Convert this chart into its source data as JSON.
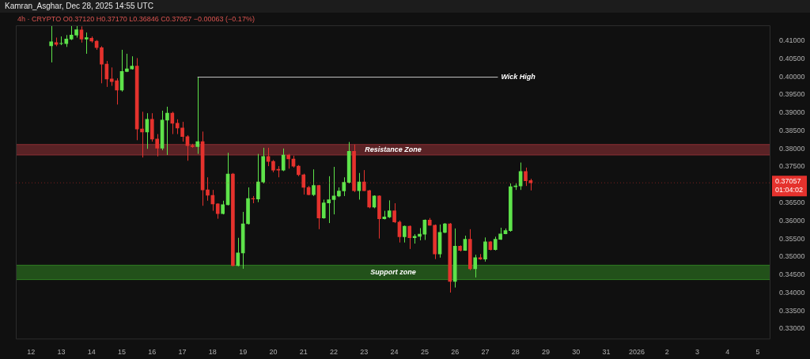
{
  "chart_data": {
    "type": "candlestick",
    "title": "4h · CRYPTO  O0.37120 H0.37170 L0.36846 C0.37057 −0.00063 (−0.17%)",
    "annotations": [
      "Kamran_Asghar, Dec 28, 2025 14:55 UTC",
      {
        "text": "Wick High",
        "x": "2025-12-27T10:00",
        "y": 0.3999
      }
    ],
    "x": [
      "2025-12-12T16:00",
      "2025-12-12T20:00",
      "2025-12-13T00:00",
      "2025-12-13T04:00",
      "2025-12-13T08:00",
      "2025-12-13T12:00",
      "2025-12-13T16:00",
      "2025-12-13T20:00",
      "2025-12-14T00:00",
      "2025-12-14T04:00",
      "2025-12-14T08:00",
      "2025-12-14T12:00",
      "2025-12-14T16:00",
      "2025-12-14T20:00",
      "2025-12-15T00:00",
      "2025-12-15T04:00",
      "2025-12-15T08:00",
      "2025-12-15T12:00",
      "2025-12-15T16:00",
      "2025-12-15T20:00",
      "2025-12-16T00:00",
      "2025-12-16T04:00",
      "2025-12-16T08:00",
      "2025-12-16T12:00",
      "2025-12-16T16:00",
      "2025-12-16T20:00",
      "2025-12-17T00:00",
      "2025-12-17T04:00",
      "2025-12-17T08:00",
      "2025-12-17T12:00",
      "2025-12-17T16:00",
      "2025-12-17T20:00",
      "2025-12-18T00:00",
      "2025-12-18T04:00",
      "2025-12-18T08:00",
      "2025-12-18T12:00",
      "2025-12-18T16:00",
      "2025-12-18T20:00",
      "2025-12-19T00:00",
      "2025-12-19T04:00",
      "2025-12-19T08:00",
      "2025-12-19T12:00",
      "2025-12-19T16:00",
      "2025-12-19T20:00",
      "2025-12-20T00:00",
      "2025-12-20T04:00",
      "2025-12-20T08:00",
      "2025-12-20T12:00",
      "2025-12-20T16:00",
      "2025-12-20T20:00",
      "2025-12-21T00:00",
      "2025-12-21T04:00",
      "2025-12-21T08:00",
      "2025-12-21T12:00",
      "2025-12-21T16:00",
      "2025-12-21T20:00",
      "2025-12-22T00:00",
      "2025-12-22T04:00",
      "2025-12-22T08:00",
      "2025-12-22T12:00",
      "2025-12-22T16:00",
      "2025-12-22T20:00",
      "2025-12-23T00:00",
      "2025-12-23T04:00",
      "2025-12-23T08:00",
      "2025-12-23T12:00",
      "2025-12-23T16:00",
      "2025-12-23T20:00",
      "2025-12-24T00:00",
      "2025-12-24T04:00",
      "2025-12-24T08:00",
      "2025-12-24T12:00",
      "2025-12-24T16:00",
      "2025-12-24T20:00",
      "2025-12-25T00:00",
      "2025-12-25T04:00",
      "2025-12-25T08:00",
      "2025-12-25T12:00",
      "2025-12-25T16:00",
      "2025-12-25T20:00",
      "2025-12-26T00:00",
      "2025-12-26T04:00",
      "2025-12-26T08:00",
      "2025-12-26T12:00",
      "2025-12-26T16:00",
      "2025-12-26T20:00",
      "2025-12-27T00:00",
      "2025-12-27T04:00",
      "2025-12-27T08:00",
      "2025-12-27T12:00",
      "2025-12-27T16:00",
      "2025-12-27T20:00",
      "2025-12-28T00:00",
      "2025-12-28T04:00",
      "2025-12-28T08:00",
      "2025-12-28T12:00"
    ],
    "ohlc": [
      [
        0.4086,
        0.4142,
        0.404,
        0.4097
      ],
      [
        0.4095,
        0.4109,
        0.4085,
        0.409
      ],
      [
        0.4092,
        0.4112,
        0.4088,
        0.4093
      ],
      [
        0.4092,
        0.4116,
        0.4083,
        0.4105
      ],
      [
        0.4105,
        0.4142,
        0.4102,
        0.4116
      ],
      [
        0.4116,
        0.4142,
        0.4109,
        0.4131
      ],
      [
        0.413,
        0.414,
        0.4095,
        0.4105
      ],
      [
        0.4105,
        0.4123,
        0.4064,
        0.4109
      ],
      [
        0.4107,
        0.4112,
        0.4095,
        0.4099
      ],
      [
        0.4099,
        0.4102,
        0.4075,
        0.4081
      ],
      [
        0.4081,
        0.4085,
        0.3982,
        0.4035
      ],
      [
        0.4035,
        0.4044,
        0.3972,
        0.3994
      ],
      [
        0.3994,
        0.4026,
        0.3975,
        0.3987
      ],
      [
        0.3989,
        0.3996,
        0.3923,
        0.3963
      ],
      [
        0.3963,
        0.4075,
        0.3959,
        0.4015
      ],
      [
        0.4015,
        0.4064,
        0.4013,
        0.4022
      ],
      [
        0.4022,
        0.4057,
        0.402,
        0.403
      ],
      [
        0.403,
        0.4052,
        0.3824,
        0.3855
      ],
      [
        0.3855,
        0.3903,
        0.3776,
        0.3847
      ],
      [
        0.3847,
        0.3899,
        0.38,
        0.3882
      ],
      [
        0.3882,
        0.3899,
        0.382,
        0.3827
      ],
      [
        0.3827,
        0.3841,
        0.3779,
        0.3802
      ],
      [
        0.3802,
        0.3906,
        0.3796,
        0.388
      ],
      [
        0.388,
        0.3917,
        0.3783,
        0.3899
      ],
      [
        0.3899,
        0.3903,
        0.3841,
        0.3871
      ],
      [
        0.3871,
        0.3882,
        0.3841,
        0.3858
      ],
      [
        0.3858,
        0.3875,
        0.382,
        0.3834
      ],
      [
        0.3834,
        0.3838,
        0.3767,
        0.3809
      ],
      [
        0.3809,
        0.3814,
        0.3803,
        0.3806
      ],
      [
        0.3806,
        0.3999,
        0.3786,
        0.382
      ],
      [
        0.382,
        0.3848,
        0.3642,
        0.3686
      ],
      [
        0.3686,
        0.3721,
        0.3656,
        0.3671
      ],
      [
        0.3671,
        0.3686,
        0.3628,
        0.3647
      ],
      [
        0.3647,
        0.3649,
        0.3606,
        0.362
      ],
      [
        0.362,
        0.3656,
        0.3618,
        0.3645
      ],
      [
        0.3645,
        0.3789,
        0.3643,
        0.373
      ],
      [
        0.373,
        0.3733,
        0.3474,
        0.3476
      ],
      [
        0.3476,
        0.3553,
        0.3474,
        0.3511
      ],
      [
        0.3511,
        0.3625,
        0.3467,
        0.3592
      ],
      [
        0.3592,
        0.3693,
        0.359,
        0.3662
      ],
      [
        0.3662,
        0.3669,
        0.3649,
        0.3661
      ],
      [
        0.3661,
        0.3786,
        0.3652,
        0.3708
      ],
      [
        0.3708,
        0.3803,
        0.3704,
        0.3779
      ],
      [
        0.3779,
        0.3803,
        0.3752,
        0.3765
      ],
      [
        0.3765,
        0.3769,
        0.3735,
        0.3741
      ],
      [
        0.3743,
        0.3752,
        0.3721,
        0.3741
      ],
      [
        0.3741,
        0.3801,
        0.3738,
        0.3783
      ],
      [
        0.3783,
        0.3786,
        0.3745,
        0.3772
      ],
      [
        0.3772,
        0.3781,
        0.3748,
        0.3752
      ],
      [
        0.3752,
        0.3755,
        0.3724,
        0.3728
      ],
      [
        0.3728,
        0.3731,
        0.3673,
        0.3693
      ],
      [
        0.3693,
        0.3697,
        0.3671,
        0.3673
      ],
      [
        0.3673,
        0.3743,
        0.3669,
        0.3698
      ],
      [
        0.3698,
        0.37,
        0.3577,
        0.3608
      ],
      [
        0.3608,
        0.3659,
        0.3606,
        0.365
      ],
      [
        0.365,
        0.3724,
        0.3594,
        0.3659
      ],
      [
        0.3659,
        0.375,
        0.3618,
        0.3669
      ],
      [
        0.3669,
        0.3693,
        0.3666,
        0.3683
      ],
      [
        0.3683,
        0.3721,
        0.3669,
        0.3707
      ],
      [
        0.3707,
        0.3819,
        0.3704,
        0.3793
      ],
      [
        0.3793,
        0.3812,
        0.368,
        0.3684
      ],
      [
        0.3684,
        0.3733,
        0.3659,
        0.3708
      ],
      [
        0.3708,
        0.3741,
        0.3683,
        0.3684
      ],
      [
        0.3684,
        0.3686,
        0.3635,
        0.3638
      ],
      [
        0.3638,
        0.3671,
        0.3635,
        0.3669
      ],
      [
        0.3669,
        0.3671,
        0.3551,
        0.3606
      ],
      [
        0.3606,
        0.3628,
        0.3604,
        0.3611
      ],
      [
        0.3611,
        0.3657,
        0.3608,
        0.3628
      ],
      [
        0.3628,
        0.3649,
        0.3594,
        0.3597
      ],
      [
        0.3597,
        0.3601,
        0.354,
        0.3556
      ],
      [
        0.3556,
        0.3587,
        0.354,
        0.3585
      ],
      [
        0.3585,
        0.3587,
        0.3522,
        0.3553
      ],
      [
        0.3553,
        0.3563,
        0.3537,
        0.3557
      ],
      [
        0.3557,
        0.358,
        0.3546,
        0.3563
      ],
      [
        0.3563,
        0.3604,
        0.3547,
        0.3602
      ],
      [
        0.3602,
        0.3608,
        0.3587,
        0.3588
      ],
      [
        0.3588,
        0.359,
        0.3494,
        0.3508
      ],
      [
        0.3508,
        0.359,
        0.3498,
        0.3568
      ],
      [
        0.3568,
        0.3594,
        0.3566,
        0.3592
      ],
      [
        0.3592,
        0.3594,
        0.3401,
        0.3432
      ],
      [
        0.3432,
        0.3579,
        0.3415,
        0.353
      ],
      [
        0.353,
        0.3532,
        0.3515,
        0.3518
      ],
      [
        0.3518,
        0.3559,
        0.3517,
        0.3549
      ],
      [
        0.3549,
        0.3577,
        0.3463,
        0.3467
      ],
      [
        0.3467,
        0.3506,
        0.3443,
        0.3498
      ],
      [
        0.3498,
        0.3508,
        0.3492,
        0.3494
      ],
      [
        0.3494,
        0.3554,
        0.3487,
        0.3542
      ],
      [
        0.3542,
        0.3544,
        0.3518,
        0.352
      ],
      [
        0.352,
        0.3556,
        0.3518,
        0.3549
      ],
      [
        0.3549,
        0.3581,
        0.3547,
        0.3564
      ],
      [
        0.3564,
        0.3579,
        0.3563,
        0.3573
      ],
      [
        0.3573,
        0.3704,
        0.357,
        0.3695
      ],
      [
        0.3695,
        0.3704,
        0.3686,
        0.3697
      ],
      [
        0.3697,
        0.3762,
        0.3686,
        0.3737
      ],
      [
        0.3737,
        0.3748,
        0.3697,
        0.3711
      ],
      [
        0.3712,
        0.3717,
        0.36846,
        0.37057
      ]
    ],
    "colors": [
      "#5ee34a",
      "#e5322d",
      "#5ee34a",
      "#5ee34a",
      "#5ee34a",
      "#5ee34a",
      "#e5322d",
      "#5ee34a",
      "#e5322d",
      "#e5322d",
      "#e5322d",
      "#e5322d",
      "#e5322d",
      "#e5322d",
      "#5ee34a",
      "#5ee34a",
      "#5ee34a",
      "#e5322d",
      "#e5322d",
      "#5ee34a",
      "#e5322d",
      "#e5322d",
      "#5ee34a",
      "#5ee34a",
      "#e5322d",
      "#e5322d",
      "#e5322d",
      "#e5322d",
      "#e5322d",
      "#5ee34a",
      "#e5322d",
      "#e5322d",
      "#e5322d",
      "#e5322d",
      "#5ee34a",
      "#5ee34a",
      "#e5322d",
      "#5ee34a",
      "#5ee34a",
      "#5ee34a",
      "#e5322d",
      "#5ee34a",
      "#5ee34a",
      "#e5322d",
      "#e5322d",
      "#e5322d",
      "#5ee34a",
      "#e5322d",
      "#e5322d",
      "#e5322d",
      "#e5322d",
      "#e5322d",
      "#5ee34a",
      "#e5322d",
      "#5ee34a",
      "#5ee34a",
      "#5ee34a",
      "#5ee34a",
      "#5ee34a",
      "#5ee34a",
      "#e5322d",
      "#5ee34a",
      "#e5322d",
      "#e5322d",
      "#5ee34a",
      "#e5322d",
      "#5ee34a",
      "#5ee34a",
      "#e5322d",
      "#e5322d",
      "#5ee34a",
      "#e5322d",
      "#5ee34a",
      "#5ee34a",
      "#5ee34a",
      "#e5322d",
      "#e5322d",
      "#5ee34a",
      "#5ee34a",
      "#e5322d",
      "#5ee34a",
      "#e5322d",
      "#5ee34a",
      "#e5322d",
      "#5ee34a",
      "#e5322d",
      "#5ee34a",
      "#e5322d",
      "#5ee34a",
      "#5ee34a",
      "#5ee34a",
      "#5ee34a",
      "#5ee34a",
      "#5ee34a",
      "#e5322d",
      "#e5322d"
    ],
    "series": [
      {
        "type": "line",
        "x": [
          "2025-12-17T12:00",
          "2025-12-27T10:00"
        ],
        "values": [
          0.3999,
          0.3999
        ],
        "color": "#c8c8c8"
      }
    ],
    "bands": [
      {
        "axis": "y",
        "from": 0.3783,
        "to": 0.3812,
        "label": "Resistance Zone",
        "color": "#8b2e33"
      },
      {
        "axis": "y",
        "from": 0.3437,
        "to": 0.3477,
        "label": "Support zone",
        "color": "#2e7d22"
      }
    ],
    "ref_lines": [
      {
        "axis": "y",
        "value": 0.37057,
        "label": "0.37057 01:04:02",
        "color": "#e5322d",
        "line_style": "dotted"
      }
    ],
    "xlim": [
      "2025-12-11T12:00",
      "2026-01-05T10:00"
    ],
    "xticks": [
      {
        "value": "2025-12-12",
        "label": "12"
      },
      {
        "value": "2025-12-13",
        "label": "13"
      },
      {
        "value": "2025-12-14",
        "label": "14"
      },
      {
        "value": "2025-12-15",
        "label": "15"
      },
      {
        "value": "2025-12-16",
        "label": "16"
      },
      {
        "value": "2025-12-17",
        "label": "17"
      },
      {
        "value": "2025-12-18",
        "label": "18"
      },
      {
        "value": "2025-12-19",
        "label": "19"
      },
      {
        "value": "2025-12-20",
        "label": "20"
      },
      {
        "value": "2025-12-21",
        "label": "21"
      },
      {
        "value": "2025-12-22",
        "label": "22"
      },
      {
        "value": "2025-12-23",
        "label": "23"
      },
      {
        "value": "2025-12-24",
        "label": "24"
      },
      {
        "value": "2025-12-25",
        "label": "25"
      },
      {
        "value": "2025-12-26",
        "label": "26"
      },
      {
        "value": "2025-12-27",
        "label": "27"
      },
      {
        "value": "2025-12-28",
        "label": "28"
      },
      {
        "value": "2025-12-29",
        "label": "29"
      },
      {
        "value": "2025-12-30",
        "label": "30"
      },
      {
        "value": "2025-12-31",
        "label": "31"
      },
      {
        "value": "2026-01-01",
        "label": "2026"
      },
      {
        "value": "2026-01-02",
        "label": "2"
      },
      {
        "value": "2026-01-03",
        "label": "3"
      },
      {
        "value": "2026-01-04",
        "label": "4"
      },
      {
        "value": "2026-01-05",
        "label": "5"
      }
    ],
    "ylim": [
      0.3271,
      0.4143
    ],
    "yticks": [
      {
        "value": 0.33,
        "label": "0.33000"
      },
      {
        "value": 0.335,
        "label": "0.33500"
      },
      {
        "value": 0.34,
        "label": "0.34000"
      },
      {
        "value": 0.345,
        "label": "0.34500"
      },
      {
        "value": 0.35,
        "label": "0.35000"
      },
      {
        "value": 0.355,
        "label": "0.35500"
      },
      {
        "value": 0.36,
        "label": "0.36000"
      },
      {
        "value": 0.365,
        "label": "0.36500"
      },
      {
        "value": 0.375,
        "label": "0.37500"
      },
      {
        "value": 0.38,
        "label": "0.38000"
      },
      {
        "value": 0.385,
        "label": "0.38500"
      },
      {
        "value": 0.39,
        "label": "0.39000"
      },
      {
        "value": 0.395,
        "label": "0.39500"
      },
      {
        "value": 0.4,
        "label": "0.40000"
      },
      {
        "value": 0.405,
        "label": "0.40500"
      },
      {
        "value": 0.41,
        "label": "0.41000"
      }
    ]
  }
}
